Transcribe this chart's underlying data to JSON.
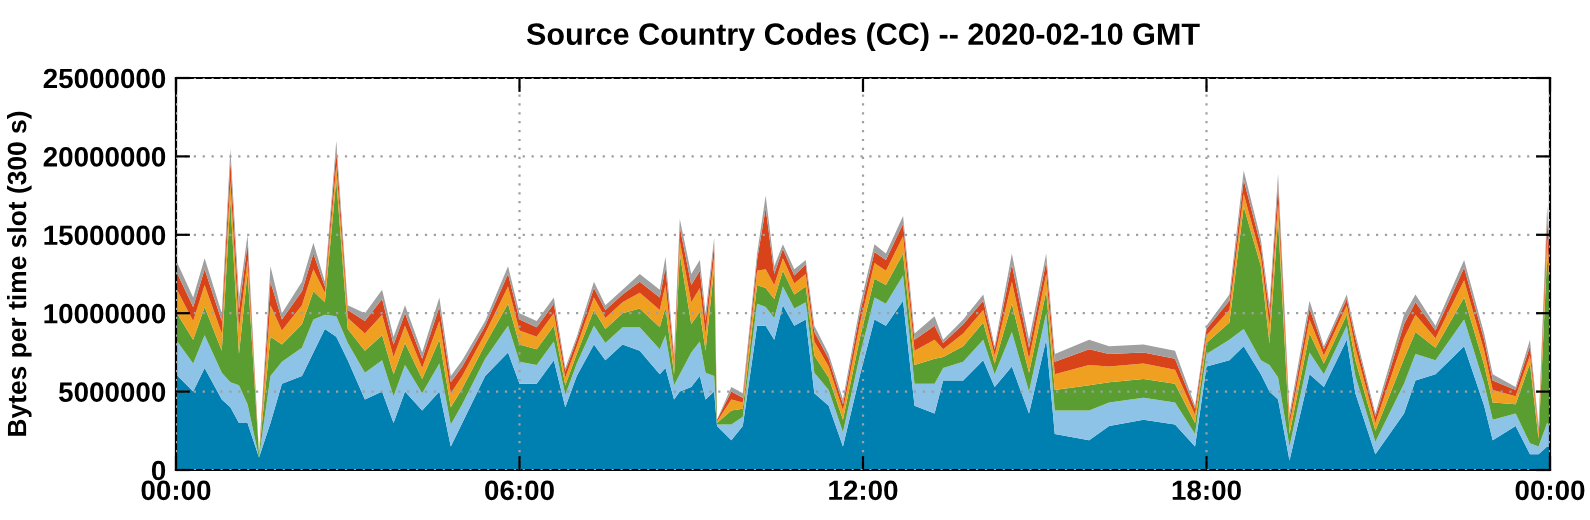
{
  "chart_data": {
    "type": "area",
    "stacked": true,
    "title": "Source Country Codes (CC) -- 2020-02-10 GMT",
    "ylabel": "Bytes per time slot (300 s)",
    "x": [
      0.0,
      0.3,
      0.5,
      0.8,
      0.95,
      1.1,
      1.25,
      1.45,
      1.65,
      1.85,
      2.2,
      2.4,
      2.6,
      2.8,
      3.0,
      3.3,
      3.6,
      3.8,
      4.0,
      4.3,
      4.6,
      4.8,
      5.0,
      5.4,
      5.8,
      6.0,
      6.3,
      6.6,
      6.8,
      7.0,
      7.3,
      7.5,
      7.8,
      8.1,
      8.45,
      8.55,
      8.7,
      8.8,
      9.0,
      9.15,
      9.25,
      9.4,
      9.45,
      9.7,
      9.9,
      10.15,
      10.3,
      10.45,
      10.6,
      10.8,
      11.0,
      11.15,
      11.4,
      11.65,
      11.95,
      12.2,
      12.4,
      12.7,
      12.9,
      13.25,
      13.4,
      13.75,
      14.1,
      14.3,
      14.6,
      14.9,
      15.2,
      15.35,
      15.95,
      16.3,
      16.9,
      17.45,
      17.8,
      18.0,
      18.4,
      18.65,
      18.95,
      19.1,
      19.25,
      19.45,
      19.8,
      20.05,
      20.45,
      20.6,
      20.95,
      21.45,
      21.65,
      22.0,
      22.5,
      22.85,
      23.0,
      23.4,
      23.65,
      23.8,
      23.95,
      24.0
    ],
    "series": [
      {
        "color": "#0080b0",
        "values": [
          6100000.0,
          5000000.0,
          6500000.0,
          4500000.0,
          4000000.0,
          3000000.0,
          3000000.0,
          800000.0,
          3000000.0,
          5500000.0,
          6000000.0,
          7500000.0,
          9000000.0,
          8500000.0,
          7000000.0,
          4500000.0,
          5000000.0,
          3000000.0,
          5000000.0,
          3800000.0,
          5000000.0,
          1500000.0,
          3000000.0,
          6000000.0,
          7500000.0,
          5500000.0,
          5500000.0,
          7000000.0,
          4000000.0,
          6000000.0,
          8000000.0,
          7000000.0,
          8000000.0,
          7600000.0,
          6100000.0,
          6500000.0,
          4500000.0,
          5000000.0,
          5300000.0,
          6000000.0,
          4500000.0,
          5000000.0,
          2800000.0,
          1900000.0,
          2800000.0,
          9200000.0,
          9200000.0,
          8300000.0,
          10500000.0,
          9200000.0,
          9600000.0,
          4900000.0,
          4100000.0,
          1500000.0,
          6100000.0,
          9600000.0,
          9200000.0,
          10800000.0,
          4100000.0,
          3600000.0,
          5700000.0,
          5700000.0,
          7000000.0,
          5300000.0,
          6600000.0,
          3600000.0,
          8300000.0,
          2300000.0,
          1900000.0,
          2800000.0,
          3200000.0,
          2900000.0,
          1500000.0,
          6600000.0,
          7000000.0,
          7900000.0,
          6100000.0,
          5000000.0,
          4500000.0,
          600000.0,
          6100000.0,
          5300000.0,
          8300000.0,
          4900000.0,
          1000000.0,
          3600000.0,
          5700000.0,
          6100000.0,
          7900000.0,
          4100000.0,
          1900000.0,
          2800000.0,
          1000000.0,
          1000000.0,
          1500000.0,
          1500000.0
        ]
      },
      {
        "color": "#8dc3e6",
        "values": [
          2200000.0,
          1800000.0,
          2100000.0,
          1700000.0,
          1600000.0,
          2400000.0,
          1200000.0,
          0,
          3000000.0,
          1400000.0,
          1800000.0,
          2100000.0,
          900000.0,
          1300000.0,
          1100000.0,
          1700000.0,
          2000000.0,
          1700000.0,
          1700000.0,
          1100000.0,
          1800000.0,
          1400000.0,
          1200000.0,
          1100000.0,
          1700000.0,
          1400000.0,
          1200000.0,
          1200000.0,
          800000.0,
          800000.0,
          1200000.0,
          1100000.0,
          1100000.0,
          1500000.0,
          1600000.0,
          2100000.0,
          900000.0,
          1100000.0,
          2200000.0,
          2200000.0,
          1700000.0,
          1000000.0,
          100000.0,
          1000000.0,
          600000.0,
          1400000.0,
          1200000.0,
          1400000.0,
          1200000.0,
          1100000.0,
          1100000.0,
          1300000.0,
          1000000.0,
          900000.0,
          1300000.0,
          1400000.0,
          1400000.0,
          1600000.0,
          1400000.0,
          1900000.0,
          800000.0,
          1200000.0,
          1300000.0,
          800000.0,
          2200000.0,
          1400000.0,
          1700000.0,
          1500000.0,
          1900000.0,
          1500000.0,
          1400000.0,
          1400000.0,
          800000.0,
          800000.0,
          1300000.0,
          1100000.0,
          900000.0,
          1700000.0,
          1400000.0,
          900000.0,
          1400000.0,
          800000.0,
          900000.0,
          1100000.0,
          800000.0,
          1900000.0,
          1700000.0,
          900000.0,
          1700000.0,
          1400000.0,
          1300000.0,
          800000.0,
          700000.0,
          500000.0,
          1500000.0,
          1300000.0
        ]
      },
      {
        "color": "#5a9e32",
        "values": [
          1800000.0,
          1500000.0,
          1800000.0,
          1400000.0,
          11600000.0,
          2000000.0,
          8400000.0,
          200000.0,
          2500000.0,
          1100000.0,
          1500000.0,
          1800000.0,
          800000.0,
          8700000.0,
          900000.0,
          1400000.0,
          1600000.0,
          1400000.0,
          1400000.0,
          900000.0,
          1500000.0,
          1100000.0,
          1000000.0,
          900000.0,
          1400000.0,
          1100000.0,
          1000000.0,
          1000000.0,
          600000.0,
          600000.0,
          1000000.0,
          900000.0,
          900000.0,
          1200000.0,
          1400000.0,
          1800000.0,
          700000.0,
          7700000.0,
          1800000.0,
          1900000.0,
          1400000.0,
          6900000.0,
          100000.0,
          900000.0,
          500000.0,
          1200000.0,
          1200000.0,
          1200000.0,
          1000000.0,
          900000.0,
          1000000.0,
          1100000.0,
          800000.0,
          800000.0,
          1100000.0,
          1200000.0,
          1200000.0,
          1400000.0,
          1200000.0,
          1600000.0,
          700000.0,
          1000000.0,
          1100000.0,
          700000.0,
          1800000.0,
          1200000.0,
          1400000.0,
          1300000.0,
          1600000.0,
          1300000.0,
          1200000.0,
          1200000.0,
          700000.0,
          700000.0,
          1100000.0,
          7800000.0,
          6000000.0,
          1400000.0,
          10100000.0,
          800000.0,
          1200000.0,
          700000.0,
          700000.0,
          1000000.0,
          700000.0,
          1600000.0,
          1400000.0,
          800000.0,
          1400000.0,
          1200000.0,
          1100000.0,
          600000.0,
          5100000.0,
          500000.0,
          10700000.0,
          8700000.0
        ]
      },
      {
        "color": "#f0a020",
        "values": [
          1500000.0,
          1200000.0,
          1400000.0,
          1100000.0,
          1200000.0,
          1600000.0,
          800000.0,
          0,
          2000000.0,
          900000.0,
          1200000.0,
          1400000.0,
          600000.0,
          900000.0,
          700000.0,
          1100000.0,
          1300000.0,
          1100000.0,
          1100000.0,
          700000.0,
          1200000.0,
          900000.0,
          800000.0,
          700000.0,
          1100000.0,
          900000.0,
          800000.0,
          800000.0,
          500000.0,
          500000.0,
          800000.0,
          700000.0,
          700000.0,
          1000000.0,
          1100000.0,
          1400000.0,
          600000.0,
          800000.0,
          1400000.0,
          1500000.0,
          1100000.0,
          700000.0,
          100000.0,
          700000.0,
          400000.0,
          900000.0,
          1200000.0,
          900000.0,
          800000.0,
          700000.0,
          800000.0,
          900000.0,
          700000.0,
          600000.0,
          900000.0,
          1000000.0,
          900000.0,
          1100000.0,
          900000.0,
          1200000.0,
          500000.0,
          800000.0,
          800000.0,
          500000.0,
          1400000.0,
          900000.0,
          1100000.0,
          1000000.0,
          1300000.0,
          1000000.0,
          1000000.0,
          900000.0,
          500000.0,
          500000.0,
          800000.0,
          800000.0,
          600000.0,
          1100000.0,
          1000000.0,
          600000.0,
          900000.0,
          500000.0,
          600000.0,
          800000.0,
          500000.0,
          1300000.0,
          1100000.0,
          600000.0,
          1100000.0,
          900000.0,
          800000.0,
          500000.0,
          500000.0,
          400000.0,
          1100000.0,
          900000.0
        ]
      },
      {
        "color": "#d9431a",
        "values": [
          1100000.0,
          900000.0,
          1000000.0,
          800000.0,
          1300000.0,
          1200000.0,
          1000000.0,
          0,
          1500000.0,
          700000.0,
          900000.0,
          1000000.0,
          400000.0,
          1000000.0,
          500000.0,
          800000.0,
          1000000.0,
          800000.0,
          800000.0,
          600000.0,
          900000.0,
          700000.0,
          600000.0,
          500000.0,
          800000.0,
          700000.0,
          600000.0,
          600000.0,
          400000.0,
          400000.0,
          600000.0,
          500000.0,
          500000.0,
          700000.0,
          800000.0,
          1100000.0,
          400000.0,
          900000.0,
          1100000.0,
          1100000.0,
          800000.0,
          800000.0,
          100000.0,
          500000.0,
          300000.0,
          700000.0,
          3900000.0,
          700000.0,
          600000.0,
          500000.0,
          600000.0,
          600000.0,
          500000.0,
          400000.0,
          700000.0,
          700000.0,
          700000.0,
          800000.0,
          700000.0,
          900000.0,
          400000.0,
          600000.0,
          600000.0,
          400000.0,
          1100000.0,
          700000.0,
          800000.0,
          800000.0,
          1000000.0,
          800000.0,
          700000.0,
          700000.0,
          400000.0,
          400000.0,
          600000.0,
          900000.0,
          700000.0,
          800000.0,
          1200000.0,
          400000.0,
          700000.0,
          400000.0,
          400000.0,
          600000.0,
          400000.0,
          900000.0,
          800000.0,
          500000.0,
          800000.0,
          700000.0,
          600000.0,
          400000.0,
          600000.0,
          200000.0,
          1200000.0,
          1000000.0
        ]
      },
      {
        "color": "#a0a0a0",
        "values": [
          700000.0,
          600000.0,
          700000.0,
          500000.0,
          800000.0,
          800000.0,
          600000.0,
          0,
          1000000.0,
          400000.0,
          600000.0,
          700000.0,
          300000.0,
          600000.0,
          300000.0,
          500000.0,
          600000.0,
          500000.0,
          500000.0,
          400000.0,
          600000.0,
          400000.0,
          400000.0,
          300000.0,
          500000.0,
          400000.0,
          400000.0,
          400000.0,
          200000.0,
          200000.0,
          400000.0,
          300000.0,
          300000.0,
          500000.0,
          500000.0,
          700000.0,
          300000.0,
          500000.0,
          700000.0,
          700000.0,
          500000.0,
          400000.0,
          0,
          300000.0,
          300000.0,
          400000.0,
          800000.0,
          500000.0,
          300000.0,
          400000.0,
          300000.0,
          400000.0,
          300000.0,
          300000.0,
          400000.0,
          500000.0,
          400000.0,
          500000.0,
          400000.0,
          600000.0,
          200000.0,
          300000.0,
          400000.0,
          200000.0,
          700000.0,
          500000.0,
          500000.0,
          500000.0,
          600000.0,
          500000.0,
          500000.0,
          500000.0,
          200000.0,
          200000.0,
          400000.0,
          600000.0,
          400000.0,
          500000.0,
          700000.0,
          300000.0,
          500000.0,
          200000.0,
          300000.0,
          300000.0,
          200000.0,
          600000.0,
          500000.0,
          300000.0,
          500000.0,
          400000.0,
          400000.0,
          200000.0,
          400000.0,
          200000.0,
          800000.0,
          600000.0
        ]
      }
    ],
    "xlim": [
      0,
      24
    ],
    "xticks": [
      {
        "value": 0,
        "label": "00:00"
      },
      {
        "value": 6,
        "label": "06:00"
      },
      {
        "value": 12,
        "label": "12:00"
      },
      {
        "value": 18,
        "label": "18:00"
      },
      {
        "value": 24,
        "label": "00:00"
      }
    ],
    "ylim": [
      0,
      25000000
    ],
    "yticks": [
      0,
      5000000,
      10000000,
      15000000,
      20000000,
      25000000
    ],
    "grid": true
  }
}
